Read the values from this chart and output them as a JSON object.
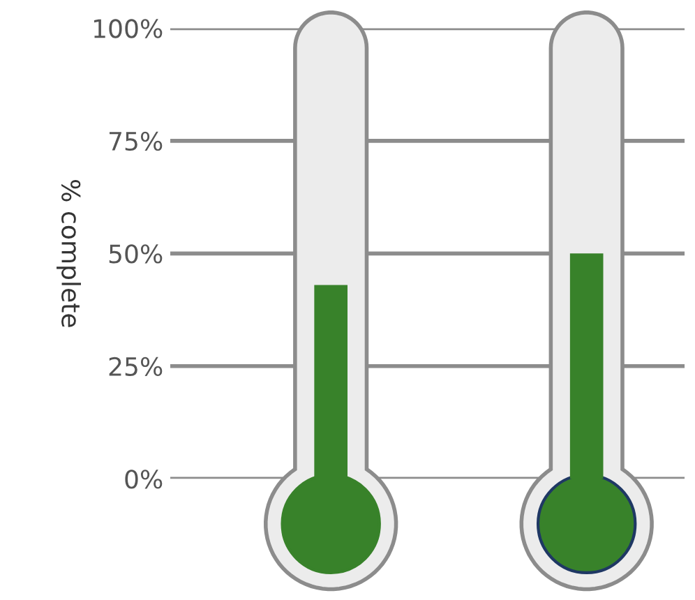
{
  "chart_data": {
    "type": "bar",
    "ylabel": "% complete",
    "categories": [
      null,
      null
    ],
    "values": [
      43,
      50
    ],
    "color": "#38822a",
    "ylim": [
      0,
      100
    ],
    "yticks": [
      {
        "value": 0,
        "label": "0%"
      },
      {
        "value": 25,
        "label": "25%"
      },
      {
        "value": 50,
        "label": "50%"
      },
      {
        "value": 75,
        "label": "75%"
      },
      {
        "value": 100,
        "label": "100%"
      }
    ],
    "grid": "y"
  }
}
